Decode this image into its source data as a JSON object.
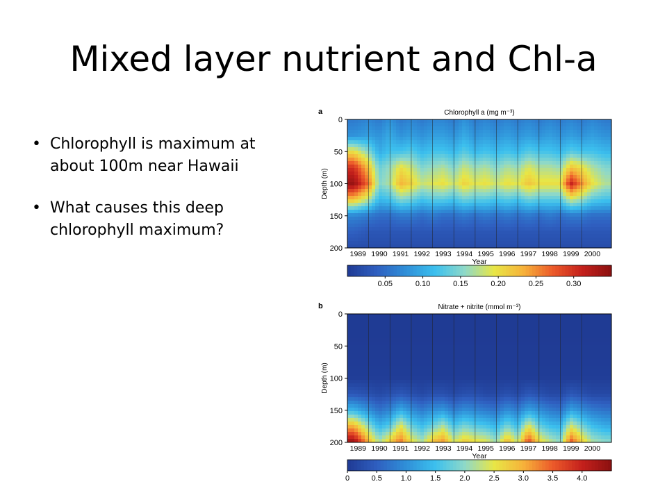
{
  "slide": {
    "title": "Mixed layer nutrient and Chl-a",
    "bullets": [
      "Chlorophyll is maximum at about 100m near Hawaii",
      "What causes this deep chlorophyll maximum?"
    ]
  },
  "colors": {
    "colormap": [
      "#1f3a93",
      "#2f5fc0",
      "#2f8fd8",
      "#3cc0ee",
      "#8fd9c8",
      "#e8e646",
      "#f6b23a",
      "#ec5a2a",
      "#c4201c",
      "#8b1010"
    ]
  },
  "chart_data": [
    {
      "panel_letter": "a",
      "type": "heatmap",
      "title": "Chlorophyll a (mg m⁻³)",
      "xlabel": "Year",
      "ylabel": "Depth (m)",
      "x_ticks": [
        "1989",
        "1990",
        "1991",
        "1992",
        "1993",
        "1994",
        "1995",
        "1996",
        "1997",
        "1998",
        "1999",
        "2000"
      ],
      "y_ticks": [
        0,
        50,
        100,
        150,
        200
      ],
      "ylim": [
        0,
        200
      ],
      "colorbar_ticks": [
        0.05,
        0.1,
        0.15,
        0.2,
        0.25,
        0.3
      ],
      "colorbar_tick_labels": [
        "0.05",
        "0.10",
        "0.15",
        "0.20",
        "0.25",
        "0.30"
      ],
      "value_range": [
        0,
        0.35
      ],
      "depths": [
        0,
        25,
        50,
        75,
        100,
        125,
        150,
        175,
        200
      ],
      "x": [
        1988.8,
        1989.5,
        1990.0,
        1990.5,
        1991.0,
        1991.5,
        1992.0,
        1992.5,
        1993.0,
        1993.5,
        1994.0,
        1994.5,
        1995.0,
        1995.5,
        1996.0,
        1996.5,
        1997.0,
        1997.5,
        1998.0,
        1998.5,
        1999.0,
        1999.5,
        2000.0,
        2000.6
      ],
      "values": [
        [
          0.06,
          0.07,
          0.06,
          0.08,
          0.06,
          0.07,
          0.06,
          0.07,
          0.07,
          0.06,
          0.08,
          0.06,
          0.07,
          0.06,
          0.07,
          0.06,
          0.07,
          0.06,
          0.07,
          0.06,
          0.07,
          0.06,
          0.07,
          0.06
        ],
        [
          0.08,
          0.09,
          0.08,
          0.1,
          0.08,
          0.09,
          0.08,
          0.09,
          0.09,
          0.08,
          0.1,
          0.08,
          0.09,
          0.08,
          0.09,
          0.08,
          0.09,
          0.08,
          0.09,
          0.08,
          0.09,
          0.08,
          0.09,
          0.08
        ],
        [
          0.2,
          0.15,
          0.1,
          0.12,
          0.12,
          0.13,
          0.11,
          0.12,
          0.12,
          0.11,
          0.13,
          0.11,
          0.12,
          0.11,
          0.12,
          0.11,
          0.13,
          0.12,
          0.12,
          0.11,
          0.13,
          0.12,
          0.12,
          0.11
        ],
        [
          0.3,
          0.22,
          0.14,
          0.16,
          0.2,
          0.18,
          0.15,
          0.16,
          0.17,
          0.15,
          0.18,
          0.16,
          0.17,
          0.15,
          0.17,
          0.16,
          0.19,
          0.17,
          0.17,
          0.16,
          0.22,
          0.2,
          0.17,
          0.15
        ],
        [
          0.34,
          0.26,
          0.15,
          0.17,
          0.23,
          0.21,
          0.18,
          0.19,
          0.2,
          0.18,
          0.21,
          0.19,
          0.2,
          0.18,
          0.2,
          0.19,
          0.22,
          0.2,
          0.2,
          0.2,
          0.31,
          0.25,
          0.2,
          0.17
        ],
        [
          0.22,
          0.17,
          0.11,
          0.12,
          0.15,
          0.14,
          0.12,
          0.13,
          0.13,
          0.12,
          0.14,
          0.13,
          0.13,
          0.12,
          0.13,
          0.12,
          0.14,
          0.13,
          0.13,
          0.13,
          0.18,
          0.16,
          0.13,
          0.12
        ],
        [
          0.07,
          0.06,
          0.05,
          0.05,
          0.06,
          0.06,
          0.05,
          0.06,
          0.05,
          0.05,
          0.06,
          0.05,
          0.06,
          0.05,
          0.06,
          0.05,
          0.06,
          0.05,
          0.06,
          0.05,
          0.06,
          0.06,
          0.05,
          0.05
        ],
        [
          0.04,
          0.03,
          0.03,
          0.03,
          0.03,
          0.03,
          0.03,
          0.03,
          0.03,
          0.03,
          0.03,
          0.03,
          0.03,
          0.03,
          0.03,
          0.03,
          0.03,
          0.03,
          0.03,
          0.03,
          0.03,
          0.03,
          0.03,
          0.03
        ],
        [
          0.02,
          0.02,
          0.02,
          0.02,
          0.02,
          0.02,
          0.02,
          0.02,
          0.02,
          0.02,
          0.02,
          0.02,
          0.02,
          0.02,
          0.02,
          0.02,
          0.02,
          0.02,
          0.02,
          0.02,
          0.02,
          0.02,
          0.02,
          0.02
        ]
      ]
    },
    {
      "panel_letter": "b",
      "type": "heatmap",
      "title": "Nitrate + nitrite (mmol m⁻³)",
      "xlabel": "Year",
      "ylabel": "Depth (m)",
      "x_ticks": [
        "1989",
        "1990",
        "1991",
        "1992",
        "1993",
        "1994",
        "1995",
        "1996",
        "1997",
        "1998",
        "1999",
        "2000"
      ],
      "y_ticks": [
        0,
        50,
        100,
        150,
        200
      ],
      "ylim": [
        0,
        200
      ],
      "colorbar_ticks": [
        0,
        0.5,
        1.0,
        1.5,
        2.0,
        2.5,
        3.0,
        3.5,
        4.0
      ],
      "colorbar_tick_labels": [
        "0",
        "0.5",
        "1.0",
        "1.5",
        "2.0",
        "2.5",
        "3.0",
        "3.5",
        "4.0"
      ],
      "value_range": [
        0,
        4.5
      ],
      "depths": [
        0,
        25,
        50,
        75,
        100,
        125,
        150,
        175,
        200
      ],
      "x": [
        1988.8,
        1989.5,
        1990.0,
        1990.5,
        1991.0,
        1991.5,
        1992.0,
        1992.5,
        1993.0,
        1993.5,
        1994.0,
        1994.5,
        1995.0,
        1995.5,
        1996.0,
        1996.5,
        1997.0,
        1997.5,
        1998.0,
        1998.5,
        1999.0,
        1999.5,
        2000.0,
        2000.6
      ],
      "values": [
        [
          0.01,
          0.01,
          0.01,
          0.01,
          0.01,
          0.01,
          0.01,
          0.01,
          0.01,
          0.01,
          0.01,
          0.01,
          0.01,
          0.01,
          0.01,
          0.01,
          0.01,
          0.01,
          0.01,
          0.01,
          0.01,
          0.01,
          0.01,
          0.01
        ],
        [
          0.01,
          0.01,
          0.01,
          0.01,
          0.01,
          0.01,
          0.01,
          0.01,
          0.01,
          0.01,
          0.01,
          0.01,
          0.01,
          0.01,
          0.01,
          0.01,
          0.01,
          0.01,
          0.01,
          0.01,
          0.01,
          0.01,
          0.01,
          0.01
        ],
        [
          0.02,
          0.02,
          0.02,
          0.02,
          0.02,
          0.02,
          0.02,
          0.02,
          0.02,
          0.02,
          0.02,
          0.02,
          0.02,
          0.02,
          0.02,
          0.02,
          0.02,
          0.02,
          0.02,
          0.02,
          0.02,
          0.02,
          0.02,
          0.02
        ],
        [
          0.03,
          0.03,
          0.03,
          0.03,
          0.03,
          0.03,
          0.03,
          0.03,
          0.03,
          0.03,
          0.03,
          0.03,
          0.03,
          0.03,
          0.03,
          0.03,
          0.03,
          0.03,
          0.03,
          0.03,
          0.03,
          0.03,
          0.03,
          0.03
        ],
        [
          0.05,
          0.05,
          0.05,
          0.05,
          0.05,
          0.05,
          0.05,
          0.05,
          0.05,
          0.05,
          0.05,
          0.05,
          0.05,
          0.05,
          0.05,
          0.05,
          0.05,
          0.05,
          0.05,
          0.05,
          0.05,
          0.05,
          0.05,
          0.05
        ],
        [
          0.4,
          0.3,
          0.2,
          0.3,
          0.4,
          0.3,
          0.2,
          0.3,
          0.3,
          0.2,
          0.3,
          0.3,
          0.2,
          0.2,
          0.3,
          0.2,
          0.4,
          0.3,
          0.2,
          0.2,
          0.4,
          0.3,
          0.2,
          0.2
        ],
        [
          1.4,
          1.0,
          0.7,
          0.9,
          1.3,
          1.0,
          0.8,
          1.0,
          1.1,
          0.8,
          1.0,
          0.9,
          0.8,
          0.7,
          1.0,
          0.8,
          1.2,
          1.0,
          0.8,
          0.7,
          1.2,
          1.0,
          0.8,
          0.7
        ],
        [
          3.0,
          2.0,
          1.4,
          1.7,
          2.5,
          1.8,
          1.5,
          1.8,
          2.2,
          1.6,
          1.9,
          1.7,
          1.6,
          1.4,
          1.9,
          1.5,
          2.5,
          1.8,
          1.5,
          1.4,
          2.4,
          1.9,
          1.5,
          1.3
        ],
        [
          4.4,
          3.0,
          2.2,
          2.8,
          3.4,
          2.6,
          2.2,
          2.9,
          3.2,
          2.4,
          2.8,
          2.6,
          2.5,
          2.1,
          3.0,
          2.3,
          3.7,
          2.7,
          2.3,
          2.0,
          3.6,
          2.8,
          2.2,
          2.0
        ]
      ]
    }
  ]
}
